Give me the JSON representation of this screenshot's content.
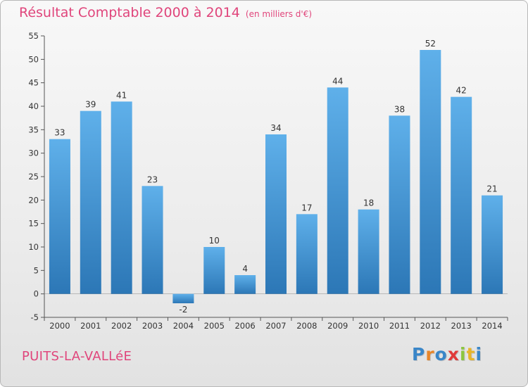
{
  "header": {
    "title": "Résultat Comptable 2000 à 2014",
    "subtitle": "(en milliers d'€)"
  },
  "footer": {
    "commune": "PUITS-LA-VALLéE",
    "logo_letters": [
      {
        "char": "P",
        "color": "#3a86c8"
      },
      {
        "char": "r",
        "color": "#e8862a"
      },
      {
        "char": "o",
        "color": "#3a86c8"
      },
      {
        "char": "x",
        "color": "#e03a3a"
      },
      {
        "char": "i",
        "color": "#8cc63f"
      },
      {
        "char": "t",
        "color": "#e8b52a"
      },
      {
        "char": "i",
        "color": "#3a86c8"
      }
    ]
  },
  "chart_data": {
    "type": "bar",
    "title": "Résultat Comptable 2000 à 2014",
    "subtitle": "(en milliers d'€)",
    "categories": [
      "2000",
      "2001",
      "2002",
      "2003",
      "2004",
      "2005",
      "2006",
      "2007",
      "2008",
      "2009",
      "2010",
      "2011",
      "2012",
      "2013",
      "2014"
    ],
    "values": [
      33,
      39,
      41,
      23,
      -2,
      10,
      4,
      34,
      17,
      44,
      18,
      38,
      52,
      42,
      21
    ],
    "value_labels": [
      "33",
      "39",
      "41",
      "23",
      "-2",
      "10",
      "4",
      "34",
      "17",
      "44",
      "18",
      "38",
      "52",
      "42",
      "21"
    ],
    "ylim": [
      -5,
      55
    ],
    "yticks": [
      -5,
      0,
      5,
      10,
      15,
      20,
      25,
      30,
      35,
      40,
      45,
      50,
      55
    ],
    "ytick_labels": [
      "-5",
      "0",
      "5",
      "10",
      "15",
      "20",
      "25",
      "30",
      "35",
      "40",
      "45",
      "50",
      "55"
    ],
    "grid": false,
    "bar_color_light": "#5fb0ea",
    "bar_color_dark": "#2c77b6"
  }
}
